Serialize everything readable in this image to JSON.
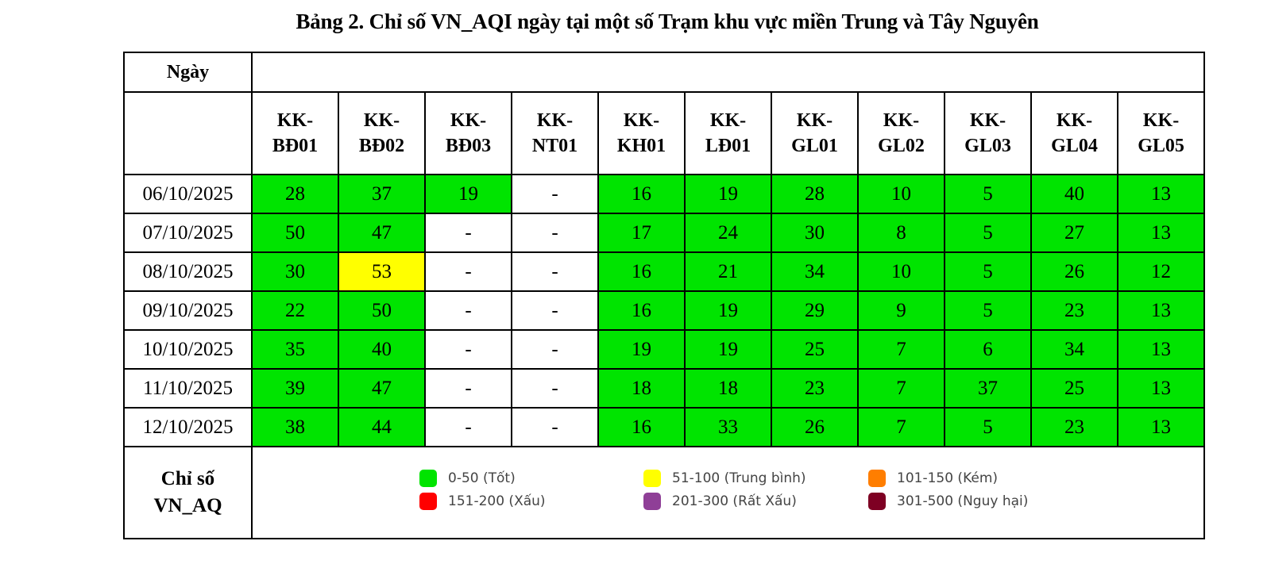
{
  "title": "Bảng 2. Chỉ số VN_AQI ngày tại một số Trạm khu vực miền Trung và Tây Nguyên",
  "table": {
    "date_header": "Ngày",
    "stations": [
      {
        "line1": "KK-",
        "line2": "BĐ01"
      },
      {
        "line1": "KK-",
        "line2": "BĐ02"
      },
      {
        "line1": "KK-",
        "line2": "BĐ03"
      },
      {
        "line1": "KK-",
        "line2": "NT01"
      },
      {
        "line1": "KK-",
        "line2": "KH01"
      },
      {
        "line1": "KK-",
        "line2": "LĐ01"
      },
      {
        "line1": "KK-",
        "line2": "GL01"
      },
      {
        "line1": "KK-",
        "line2": "GL02"
      },
      {
        "line1": "KK-",
        "line2": "GL03"
      },
      {
        "line1": "KK-",
        "line2": "GL04"
      },
      {
        "line1": "KK-",
        "line2": "GL05"
      }
    ],
    "rows": [
      {
        "date": "06/10/2025",
        "values": [
          "28",
          "37",
          "19",
          "-",
          "16",
          "19",
          "28",
          "10",
          "5",
          "40",
          "13"
        ]
      },
      {
        "date": "07/10/2025",
        "values": [
          "50",
          "47",
          "-",
          "-",
          "17",
          "24",
          "30",
          "8",
          "5",
          "27",
          "13"
        ]
      },
      {
        "date": "08/10/2025",
        "values": [
          "30",
          "53",
          "-",
          "-",
          "16",
          "21",
          "34",
          "10",
          "5",
          "26",
          "12"
        ]
      },
      {
        "date": "09/10/2025",
        "values": [
          "22",
          "50",
          "-",
          "-",
          "16",
          "19",
          "29",
          "9",
          "5",
          "23",
          "13"
        ]
      },
      {
        "date": "10/10/2025",
        "values": [
          "35",
          "40",
          "-",
          "-",
          "19",
          "19",
          "25",
          "7",
          "6",
          "34",
          "13"
        ]
      },
      {
        "date": "11/10/2025",
        "values": [
          "39",
          "47",
          "-",
          "-",
          "18",
          "18",
          "23",
          "7",
          "37",
          "25",
          "13"
        ]
      },
      {
        "date": "12/10/2025",
        "values": [
          "38",
          "44",
          "-",
          "-",
          "16",
          "33",
          "26",
          "7",
          "5",
          "23",
          "13"
        ]
      }
    ]
  },
  "legend": {
    "label_line1": "Chỉ số",
    "label_line2": "VN_AQ",
    "items": [
      {
        "label": "0-50 (Tốt)",
        "color": "#00e400"
      },
      {
        "label": "51-100 (Trung bình)",
        "color": "#ffff00"
      },
      {
        "label": "101-150 (Kém)",
        "color": "#ff7e00"
      },
      {
        "label": "151-200 (Xấu)",
        "color": "#ff0000"
      },
      {
        "label": "201-300 (Rất Xấu)",
        "color": "#8f3f97"
      },
      {
        "label": "301-500 (Nguy hại)",
        "color": "#7e0023"
      }
    ]
  }
}
